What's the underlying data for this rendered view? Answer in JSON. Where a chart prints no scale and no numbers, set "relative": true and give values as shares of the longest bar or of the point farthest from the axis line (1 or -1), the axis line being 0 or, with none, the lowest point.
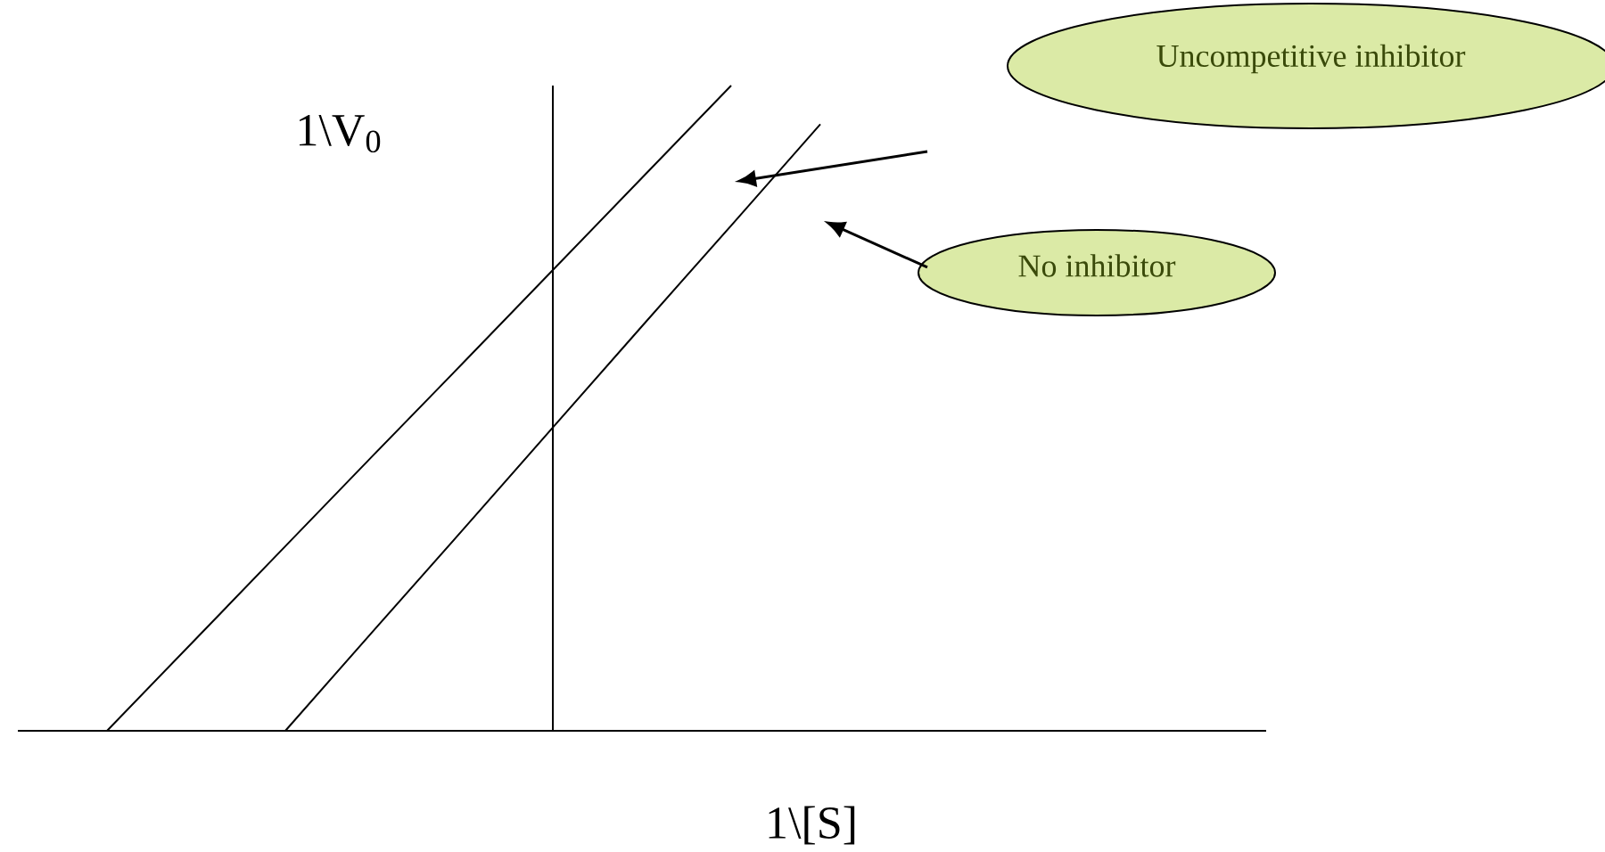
{
  "chart_data": {
    "type": "line",
    "relative": true,
    "xlabel": "1\\[S]",
    "ylabel": "1\\V$_{0}$",
    "categories": [
      null,
      null,
      null,
      null,
      null,
      null,
      null,
      null,
      null,
      null,
      null,
      null,
      null,
      null,
      null
    ],
    "series": [
      {
        "name": "Uncompetitive inhibitor",
        "color": "#000000",
        "values": [
          null,
          0,
          0.143,
          0.286,
          0.429,
          0.571,
          0.714,
          0.857,
          1,
          null,
          null,
          null,
          null,
          null,
          null
        ]
      },
      {
        "name": "No inhibitor",
        "color": "#000000",
        "values": [
          null,
          null,
          null,
          0,
          0.157,
          0.313,
          0.47,
          0.627,
          0.783,
          0.94,
          null,
          null,
          null,
          null,
          null
        ]
      }
    ]
  }
}
